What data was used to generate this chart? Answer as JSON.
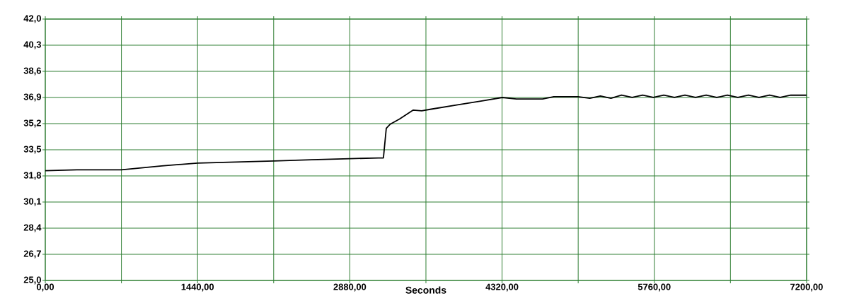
{
  "chart_data": {
    "type": "line",
    "xlabel": "Seconds",
    "x": [
      0,
      300,
      720,
      1100,
      1440,
      1800,
      2160,
      2520,
      2880,
      3150,
      3198,
      3225,
      3260,
      3350,
      3480,
      3560,
      3640,
      3900,
      4150,
      4322,
      4456,
      4703,
      4810,
      5038,
      5150,
      5250,
      5350,
      5450,
      5550,
      5650,
      5750,
      5850,
      5950,
      6050,
      6150,
      6250,
      6350,
      6450,
      6550,
      6650,
      6750,
      6850,
      6950,
      7050,
      7200
    ],
    "values": [
      32.14,
      32.2,
      32.2,
      32.45,
      32.63,
      32.7,
      32.77,
      32.85,
      32.92,
      32.97,
      32.97,
      34.9,
      35.15,
      35.5,
      36.08,
      36.03,
      36.13,
      36.42,
      36.7,
      36.9,
      36.8,
      36.8,
      36.95,
      36.95,
      36.85,
      37.0,
      36.85,
      37.05,
      36.9,
      37.05,
      36.9,
      37.05,
      36.9,
      37.05,
      36.9,
      37.05,
      36.9,
      37.05,
      36.9,
      37.05,
      36.9,
      37.05,
      36.9,
      37.05,
      37.05
    ],
    "color": "#000000",
    "marker": "none",
    "line_style": "solid",
    "grid": true,
    "xlim": [
      0,
      7200
    ],
    "ylim": [
      25.0,
      42.0
    ],
    "xticks": [
      {
        "value": 0,
        "label": "0,00"
      },
      {
        "value": 720,
        "label": null
      },
      {
        "value": 1440,
        "label": "1440,00"
      },
      {
        "value": 2160,
        "label": null
      },
      {
        "value": 2880,
        "label": "2880,00"
      },
      {
        "value": 3600,
        "label": null
      },
      {
        "value": 4320,
        "label": "4320,00"
      },
      {
        "value": 5040,
        "label": null
      },
      {
        "value": 5760,
        "label": "5760,00"
      },
      {
        "value": 6480,
        "label": null
      },
      {
        "value": 7200,
        "label": "7200,00"
      }
    ],
    "yticks": [
      {
        "value": 25.0,
        "label": "25,0"
      },
      {
        "value": 26.7,
        "label": "26,7"
      },
      {
        "value": 28.4,
        "label": "28,4"
      },
      {
        "value": 30.1,
        "label": "30,1"
      },
      {
        "value": 31.8,
        "label": "31,8"
      },
      {
        "value": 33.5,
        "label": "33,5"
      },
      {
        "value": 35.2,
        "label": "35,2"
      },
      {
        "value": 36.9,
        "label": "36,9"
      },
      {
        "value": 38.6,
        "label": "38,6"
      },
      {
        "value": 40.3,
        "label": "40,3"
      },
      {
        "value": 42.0,
        "label": "42,0"
      }
    ]
  }
}
